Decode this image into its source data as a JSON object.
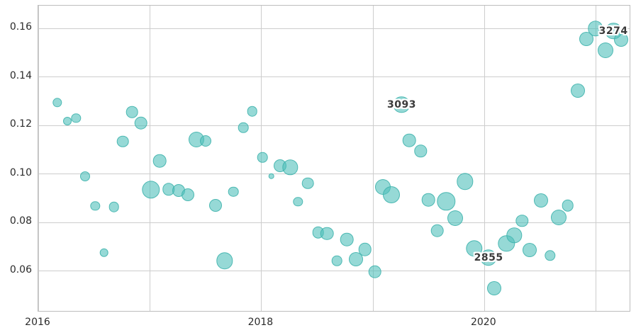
{
  "figure": {
    "background": "#ffffff"
  },
  "chart_data": {
    "type": "scatter",
    "variant": "bubble",
    "title": "",
    "xlabel": "",
    "ylabel": "",
    "grid": true,
    "legend": false,
    "xlim": [
      2016.0,
      2021.318
    ],
    "ylim": [
      0.0429,
      0.1693
    ],
    "x_gridlines": [
      2016,
      2017,
      2018,
      2019,
      2020,
      2021
    ],
    "x_ticks": [
      {
        "value": 2016,
        "label": "2016"
      },
      {
        "value": 2018,
        "label": "2018"
      },
      {
        "value": 2020,
        "label": "2020"
      }
    ],
    "y_ticks": [
      {
        "value": 0.06,
        "label": "0.06"
      },
      {
        "value": 0.08,
        "label": "0.08"
      },
      {
        "value": 0.1,
        "label": "0.10"
      },
      {
        "value": 0.12,
        "label": "0.12"
      },
      {
        "value": 0.14,
        "label": "0.14"
      },
      {
        "value": 0.16,
        "label": "0.16"
      }
    ],
    "colors": {
      "marker_fill": "#4dbeb9",
      "marker_edge": "#3eb1ab",
      "gridline": "#cdcdcd",
      "plot_border": "#bdbdbd",
      "tick_text": "#2b2b2b",
      "annotation_text": "#3a3a3a",
      "annotation_halo": "#ffffff"
    },
    "marker_alpha": 0.59,
    "marker_edge_alpha": 0.85,
    "points": [
      {
        "x": 2016.17,
        "y": 0.1293,
        "r": 6.7
      },
      {
        "x": 2016.26,
        "y": 0.1217,
        "r": 6.0
      },
      {
        "x": 2016.34,
        "y": 0.1229,
        "r": 6.7
      },
      {
        "x": 2016.42,
        "y": 0.099,
        "r": 7.0
      },
      {
        "x": 2016.51,
        "y": 0.0867,
        "r": 6.7
      },
      {
        "x": 2016.59,
        "y": 0.0675,
        "r": 6.3
      },
      {
        "x": 2016.68,
        "y": 0.0864,
        "r": 7.3
      },
      {
        "x": 2016.76,
        "y": 0.1133,
        "r": 8.3
      },
      {
        "x": 2016.84,
        "y": 0.1254,
        "r": 8.3
      },
      {
        "x": 2016.92,
        "y": 0.1209,
        "r": 9.3
      },
      {
        "x": 2017.01,
        "y": 0.0934,
        "r": 12.7
      },
      {
        "x": 2017.09,
        "y": 0.1053,
        "r": 9.3
      },
      {
        "x": 2017.17,
        "y": 0.0936,
        "r": 8.7
      },
      {
        "x": 2017.26,
        "y": 0.0932,
        "r": 9.0
      },
      {
        "x": 2017.34,
        "y": 0.0913,
        "r": 9.0
      },
      {
        "x": 2017.42,
        "y": 0.1142,
        "r": 11.0
      },
      {
        "x": 2017.5,
        "y": 0.1135,
        "r": 8.0
      },
      {
        "x": 2017.59,
        "y": 0.0869,
        "r": 9.0
      },
      {
        "x": 2017.67,
        "y": 0.0641,
        "r": 11.7
      },
      {
        "x": 2017.75,
        "y": 0.0926,
        "r": 7.3
      },
      {
        "x": 2017.84,
        "y": 0.119,
        "r": 7.3
      },
      {
        "x": 2017.92,
        "y": 0.1258,
        "r": 7.3
      },
      {
        "x": 2018.01,
        "y": 0.1068,
        "r": 7.3
      },
      {
        "x": 2018.09,
        "y": 0.099,
        "r": 4.3
      },
      {
        "x": 2018.17,
        "y": 0.1033,
        "r": 9.0
      },
      {
        "x": 2018.26,
        "y": 0.1027,
        "r": 10.7
      },
      {
        "x": 2018.33,
        "y": 0.0885,
        "r": 6.7
      },
      {
        "x": 2018.42,
        "y": 0.0961,
        "r": 8.3
      },
      {
        "x": 2018.51,
        "y": 0.0759,
        "r": 8.3
      },
      {
        "x": 2018.59,
        "y": 0.0754,
        "r": 9.3
      },
      {
        "x": 2018.68,
        "y": 0.0641,
        "r": 7.3
      },
      {
        "x": 2018.77,
        "y": 0.0729,
        "r": 9.3
      },
      {
        "x": 2018.85,
        "y": 0.0647,
        "r": 10.0
      },
      {
        "x": 2018.93,
        "y": 0.0688,
        "r": 9.3
      },
      {
        "x": 2019.02,
        "y": 0.0596,
        "r": 9.3
      },
      {
        "x": 2019.09,
        "y": 0.0945,
        "r": 11.0
      },
      {
        "x": 2019.17,
        "y": 0.0914,
        "r": 12.0
      },
      {
        "x": 2019.26,
        "y": 0.1284,
        "r": 11.7,
        "label": "3093"
      },
      {
        "x": 2019.33,
        "y": 0.1137,
        "r": 9.3
      },
      {
        "x": 2019.43,
        "y": 0.1094,
        "r": 8.7
      },
      {
        "x": 2019.5,
        "y": 0.0892,
        "r": 9.3
      },
      {
        "x": 2019.58,
        "y": 0.0765,
        "r": 9.3
      },
      {
        "x": 2019.66,
        "y": 0.0886,
        "r": 12.7
      },
      {
        "x": 2019.74,
        "y": 0.0818,
        "r": 11.0
      },
      {
        "x": 2019.83,
        "y": 0.0968,
        "r": 11.7
      },
      {
        "x": 2019.91,
        "y": 0.0692,
        "r": 11.7
      },
      {
        "x": 2020.04,
        "y": 0.0654,
        "r": 11.7,
        "label": "2855"
      },
      {
        "x": 2020.09,
        "y": 0.0529,
        "r": 10.0
      },
      {
        "x": 2020.2,
        "y": 0.0713,
        "r": 11.7
      },
      {
        "x": 2020.27,
        "y": 0.0746,
        "r": 10.7
      },
      {
        "x": 2020.34,
        "y": 0.0806,
        "r": 8.7
      },
      {
        "x": 2020.41,
        "y": 0.0687,
        "r": 10.0
      },
      {
        "x": 2020.51,
        "y": 0.0889,
        "r": 10.0
      },
      {
        "x": 2020.59,
        "y": 0.0663,
        "r": 7.7
      },
      {
        "x": 2020.67,
        "y": 0.082,
        "r": 11.0
      },
      {
        "x": 2020.75,
        "y": 0.0869,
        "r": 8.3
      },
      {
        "x": 2020.84,
        "y": 0.1342,
        "r": 10.0
      },
      {
        "x": 2020.92,
        "y": 0.1557,
        "r": 10.0
      },
      {
        "x": 2021.0,
        "y": 0.1599,
        "r": 10.7
      },
      {
        "x": 2021.09,
        "y": 0.151,
        "r": 11.0
      },
      {
        "x": 2021.16,
        "y": 0.1588,
        "r": 11.7,
        "label": "3274"
      },
      {
        "x": 2021.23,
        "y": 0.1553,
        "r": 10.0
      }
    ]
  }
}
